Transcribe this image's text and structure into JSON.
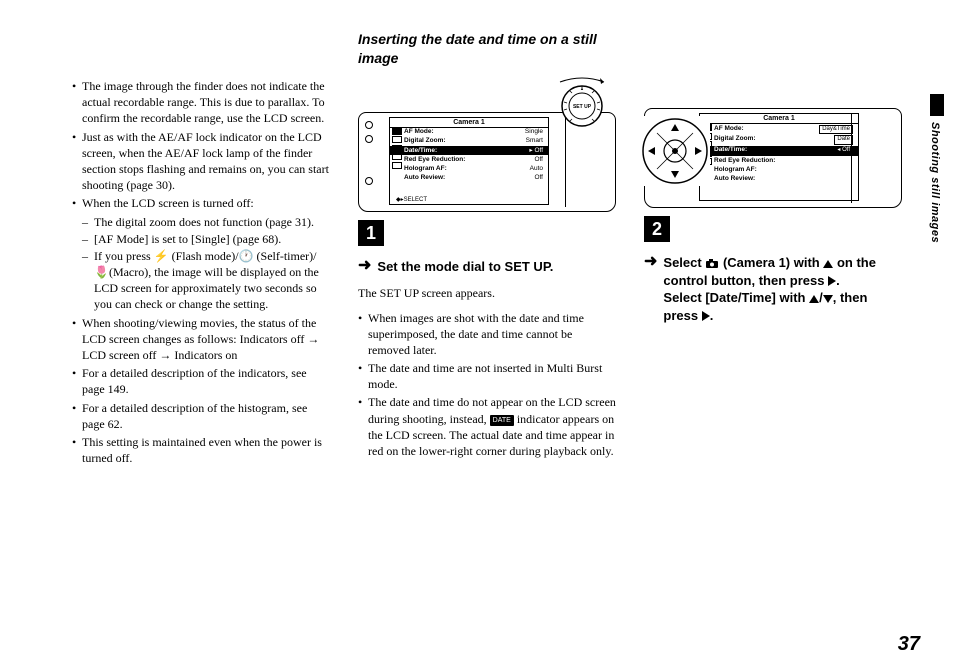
{
  "section_title": "Inserting the date and time on a still image",
  "page_number": "37",
  "side_label": "Shooting still images",
  "col1": {
    "bullets": [
      "The image through the finder does not indicate the actual recordable range. This is due to parallax. To confirm the recordable range, use the LCD screen.",
      "Just as with the AE/AF lock indicator on the LCD screen, when the AE/AF lock lamp of the finder section stops flashing and remains on, you can start shooting (page 30).",
      "When the LCD screen is turned off:",
      "When shooting/viewing movies, the status of the LCD screen changes as follows: Indicators off → LCD screen off → Indicators on",
      "For a detailed description of the indicators, see page 149.",
      "For a detailed description of the histogram, see page 62.",
      "This setting is maintained even when the power is turned off."
    ],
    "sub_bullets": [
      "The digital zoom does not function (page 31).",
      "[AF Mode] is set to [Single] (page 68).",
      "If you press ⚡ (Flash mode)/🕐 (Self-timer)/ 🌷(Macro), the image will be displayed on the LCD screen for approximately two seconds so you can check or change the setting."
    ]
  },
  "col2": {
    "lcd_header": "Camera 1",
    "menu": [
      {
        "k": "AF Mode:",
        "v": "Single",
        "sel": false
      },
      {
        "k": "Digital Zoom:",
        "v": "Smart",
        "sel": false
      },
      {
        "k": "Date/Time:",
        "v": "Off",
        "sel": true,
        "arrow": true
      },
      {
        "k": "Red Eye Reduction:",
        "v": "Off",
        "sel": false
      },
      {
        "k": "Hologram AF:",
        "v": "Auto",
        "sel": false
      },
      {
        "k": "Auto Review:",
        "v": "Off",
        "sel": false
      }
    ],
    "lcd_footer": "SELECT",
    "step_num": "1",
    "step_lead": "Set the mode dial to SET UP.",
    "body_text": "The SET UP screen appears.",
    "bullets": [
      "When images are shot with the date and time superimposed, the date and time cannot be removed later.",
      "The date and time are not inserted in Multi Burst mode."
    ],
    "bullet_date_a": "The date and time do not appear on the LCD screen during shooting, instead, ",
    "bullet_date_b": " indicator appears on the LCD screen. The actual date and time appear in red on the lower-right corner during playback only.",
    "date_badge": "DATE"
  },
  "col3": {
    "lcd_header": "Camera 1",
    "menu": [
      {
        "k": "AF Mode:",
        "v": "",
        "opts": [
          "Day&Time"
        ]
      },
      {
        "k": "Digital Zoom:",
        "v": "",
        "opts": [
          "Date"
        ]
      },
      {
        "k": "Date/Time:",
        "v": "",
        "sel": true,
        "opts": [
          "Off"
        ],
        "optSel": true
      },
      {
        "k": "Red Eye Reduction:",
        "v": ""
      },
      {
        "k": "Hologram AF:",
        "v": ""
      },
      {
        "k": "Auto Review:",
        "v": ""
      }
    ],
    "step_num": "2",
    "lead_a": "Select ",
    "lead_b": " (Camera 1) with ",
    "lead_c": " on the control button, then press ",
    "lead_d": ".",
    "lead_e": "Select [Date/Time] with ",
    "lead_f": "/",
    "lead_g": ", then press ",
    "lead_h": "."
  }
}
